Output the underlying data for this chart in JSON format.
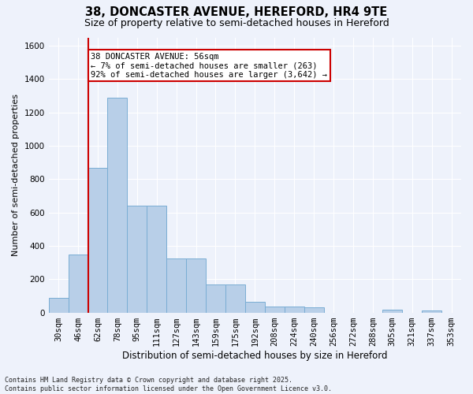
{
  "title1": "38, DONCASTER AVENUE, HEREFORD, HR4 9TE",
  "title2": "Size of property relative to semi-detached houses in Hereford",
  "xlabel": "Distribution of semi-detached houses by size in Hereford",
  "ylabel": "Number of semi-detached properties",
  "categories": [
    "30sqm",
    "46sqm",
    "62sqm",
    "78sqm",
    "95sqm",
    "111sqm",
    "127sqm",
    "143sqm",
    "159sqm",
    "175sqm",
    "192sqm",
    "208sqm",
    "224sqm",
    "240sqm",
    "256sqm",
    "272sqm",
    "288sqm",
    "305sqm",
    "321sqm",
    "337sqm",
    "353sqm"
  ],
  "values": [
    90,
    350,
    870,
    1290,
    640,
    640,
    325,
    325,
    170,
    170,
    65,
    35,
    35,
    30,
    0,
    0,
    0,
    15,
    0,
    10,
    0
  ],
  "bar_color": "#b8cfe8",
  "bar_edge_color": "#7aadd4",
  "vline_color": "#cc0000",
  "vline_x_index": 2,
  "annotation_title": "38 DONCASTER AVENUE: 56sqm",
  "annotation_line1": "← 7% of semi-detached houses are smaller (263)",
  "annotation_line2": "92% of semi-detached houses are larger (3,642) →",
  "annotation_box_color": "white",
  "annotation_box_edge": "#cc0000",
  "ylim": [
    0,
    1650
  ],
  "yticks": [
    0,
    200,
    400,
    600,
    800,
    1000,
    1200,
    1400,
    1600
  ],
  "background_color": "#eef2fb",
  "grid_color": "#ffffff",
  "footer": "Contains HM Land Registry data © Crown copyright and database right 2025.\nContains public sector information licensed under the Open Government Licence v3.0.",
  "title1_fontsize": 10.5,
  "title2_fontsize": 9,
  "xlabel_fontsize": 8.5,
  "ylabel_fontsize": 8,
  "annotation_fontsize": 7.5,
  "tick_fontsize": 7.5,
  "footer_fontsize": 6
}
